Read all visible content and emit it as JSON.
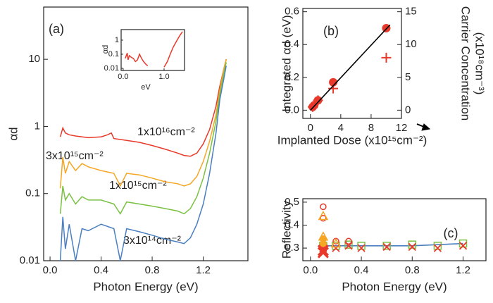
{
  "chart_data": [
    {
      "type": "line",
      "panel_label": "(a)",
      "xlabel": "Photon Energy (eV)",
      "ylabel": "αd",
      "log_y": true,
      "xlim": [
        -0.05,
        1.55
      ],
      "ylim": [
        0.01,
        60
      ],
      "xticks": [
        {
          "value": 0,
          "label": "0.0"
        },
        0.4,
        0.8,
        1.2
      ],
      "yticks": [
        0.01,
        0.1,
        1,
        10
      ],
      "annotations": [
        "1x10¹⁶cm⁻²",
        "3x10¹⁵cm⁻²",
        "1x10¹⁵cm⁻²",
        "3x10¹⁴cm⁻²"
      ],
      "series": [
        {
          "color": "#e8392b",
          "x": [
            0.08,
            0.1,
            0.12,
            0.15,
            0.2,
            0.3,
            0.4,
            0.45,
            0.48,
            0.5,
            0.6,
            0.7,
            0.8,
            0.9,
            1.0,
            1.05,
            1.1,
            1.15,
            1.2,
            1.25,
            1.3,
            1.33,
            1.36,
            1.38
          ],
          "values": [
            0.7,
            0.95,
            0.8,
            0.75,
            0.72,
            0.68,
            0.7,
            0.75,
            0.8,
            0.66,
            0.62,
            0.58,
            0.52,
            0.46,
            0.4,
            0.37,
            0.36,
            0.4,
            0.55,
            0.9,
            2,
            4,
            7,
            10
          ]
        },
        {
          "color": "#f5a623",
          "x": [
            0.08,
            0.1,
            0.12,
            0.15,
            0.2,
            0.25,
            0.3,
            0.4,
            0.5,
            0.55,
            0.6,
            0.7,
            0.8,
            0.9,
            1.0,
            1.05,
            1.1,
            1.15,
            1.2,
            1.25,
            1.3,
            1.33,
            1.36,
            1.38
          ],
          "values": [
            0.12,
            0.35,
            0.2,
            0.3,
            0.22,
            0.28,
            0.25,
            0.22,
            0.2,
            0.13,
            0.2,
            0.19,
            0.17,
            0.15,
            0.14,
            0.13,
            0.14,
            0.18,
            0.3,
            0.6,
            1.5,
            3.5,
            7,
            10
          ]
        },
        {
          "color": "#7ac143",
          "x": [
            0.08,
            0.1,
            0.12,
            0.15,
            0.2,
            0.25,
            0.3,
            0.4,
            0.5,
            0.55,
            0.6,
            0.7,
            0.8,
            0.9,
            1.0,
            1.05,
            1.1,
            1.15,
            1.2,
            1.25,
            1.3,
            1.33,
            1.36,
            1.38
          ],
          "values": [
            0.05,
            0.13,
            0.08,
            0.1,
            0.07,
            0.09,
            0.08,
            0.08,
            0.07,
            0.05,
            0.075,
            0.07,
            0.065,
            0.06,
            0.055,
            0.05,
            0.06,
            0.09,
            0.17,
            0.4,
            1.2,
            3,
            6,
            9
          ]
        },
        {
          "color": "#4a7fc1",
          "x": [
            0.08,
            0.1,
            0.12,
            0.15,
            0.2,
            0.25,
            0.3,
            0.4,
            0.5,
            0.55,
            0.6,
            0.7,
            0.8,
            0.9,
            1.0,
            1.05,
            1.1,
            1.15,
            1.2,
            1.25,
            1.3,
            1.33,
            1.36,
            1.38
          ],
          "values": [
            0.01,
            0.045,
            0.015,
            0.035,
            0.01,
            0.03,
            0.028,
            0.035,
            0.03,
            0.01,
            0.03,
            0.027,
            0.024,
            0.021,
            0.019,
            0.018,
            0.022,
            0.035,
            0.07,
            0.2,
            0.8,
            2.5,
            5,
            8
          ]
        }
      ]
    },
    {
      "type": "line",
      "xlabel": "eV",
      "ylabel": "αd",
      "log_y": true,
      "xlim": [
        -0.05,
        1.5
      ],
      "ylim": [
        0.007,
        5.6
      ],
      "xticks": [
        {
          "value": 0,
          "label": "0.0"
        },
        {
          "value": 1,
          "label": "1.0"
        }
      ],
      "yticks": [
        0.01,
        0.1,
        1
      ],
      "series": [
        {
          "color": "#e8392b",
          "x": [
            0.05,
            0.1,
            0.12,
            0.15,
            0.2,
            0.25,
            0.3,
            0.35,
            0.4,
            0.45,
            0.5,
            0.55,
            0.6,
            0.8,
            1.0,
            1.08,
            1.15,
            1.22,
            1.3,
            1.38,
            1.45
          ],
          "values": [
            0.05,
            0.12,
            0.04,
            0.08,
            0.06,
            0.05,
            0.03,
            0.04,
            0.1,
            0.05,
            0.03,
            0.02,
            0.015,
            null,
            0.012,
            0.03,
            0.1,
            0.3,
            0.8,
            2,
            4
          ]
        }
      ]
    },
    {
      "type": "scatter",
      "panel_label": "(b)",
      "xlabel": "Implanted Dose (x10¹⁵cm⁻²)",
      "ylabel": "Integrated  αd (eV)",
      "y2label": [
        "Carrier Concentration",
        "(x10¹⁸cm⁻³)"
      ],
      "xlim": [
        -1,
        12
      ],
      "ylim": [
        -0.05,
        0.62
      ],
      "y2lim": [
        -1.25,
        15.5
      ],
      "xticks": [
        0,
        4,
        8,
        12
      ],
      "yticks": [
        {
          "value": 0,
          "label": "0.0"
        },
        0.2,
        0.4,
        0.6
      ],
      "y2ticks": [
        0,
        5,
        10,
        15
      ],
      "series": [
        {
          "color": "#e8392b",
          "marker": "dot",
          "x": [
            0.3,
            0.5,
            1,
            3,
            10
          ],
          "values": [
            0.02,
            0.03,
            0.06,
            0.17,
            0.5
          ]
        },
        {
          "color": "#e8392b",
          "marker": "plus",
          "axis": "y2",
          "x": [
            0.3,
            1,
            3,
            10
          ],
          "values": [
            0.5,
            1.5,
            3.3,
            8
          ]
        },
        {
          "color": "#000000",
          "line": true,
          "x": [
            0,
            10.5
          ],
          "values": [
            0,
            0.52
          ]
        }
      ]
    },
    {
      "type": "scatter",
      "panel_label": "(c)",
      "xlabel": "Photon Energy (eV)",
      "ylabel": "Reflectivity",
      "xlim": [
        -0.06,
        1.38
      ],
      "ylim": [
        0.245,
        0.515
      ],
      "xticks": [
        {
          "value": 0,
          "label": "0.0"
        },
        0.4,
        0.8,
        1.2
      ],
      "yticks": [
        0.3,
        0.4,
        0.5
      ],
      "series": [
        {
          "color": "#4a7fc1",
          "line": true,
          "x": [
            0.1,
            0.2,
            0.3,
            0.4,
            0.6,
            0.8,
            1.0,
            1.2
          ],
          "values": [
            0.31,
            0.31,
            0.31,
            0.31,
            0.31,
            0.31,
            0.315,
            0.32
          ]
        },
        {
          "color": "#7ac143",
          "marker": "square",
          "x": [
            0.1,
            0.2,
            0.3,
            0.4,
            0.6,
            0.8,
            1.0,
            1.2
          ],
          "values": [
            0.31,
            0.31,
            0.315,
            0.31,
            0.31,
            0.315,
            0.31,
            0.32
          ]
        },
        {
          "color": "#e8392b",
          "marker": "cross",
          "x": [
            0.1,
            0.2,
            0.3,
            0.4,
            0.6,
            0.8,
            1.0,
            1.2
          ],
          "values": [
            0.3,
            0.3,
            0.31,
            0.3,
            0.305,
            0.305,
            0.3,
            0.31
          ]
        },
        {
          "color": "#e8392b",
          "marker": "circle",
          "x": [
            0.1,
            0.1,
            0.2,
            0.3
          ],
          "values": [
            0.48,
            0.43,
            0.33,
            0.33
          ]
        },
        {
          "color": "#f5a623",
          "marker": "triangle",
          "x": [
            0.1,
            0.1,
            0.2
          ],
          "values": [
            0.44,
            0.35,
            0.32
          ]
        },
        {
          "color": "#f5a623",
          "marker": "dot",
          "x": [
            0.1,
            0.1
          ],
          "values": [
            0.34,
            0.32
          ]
        },
        {
          "color": "#e8392b",
          "marker": "bigcross",
          "x": [
            0.1,
            0.1
          ],
          "values": [
            0.29,
            0.28
          ]
        }
      ]
    }
  ]
}
